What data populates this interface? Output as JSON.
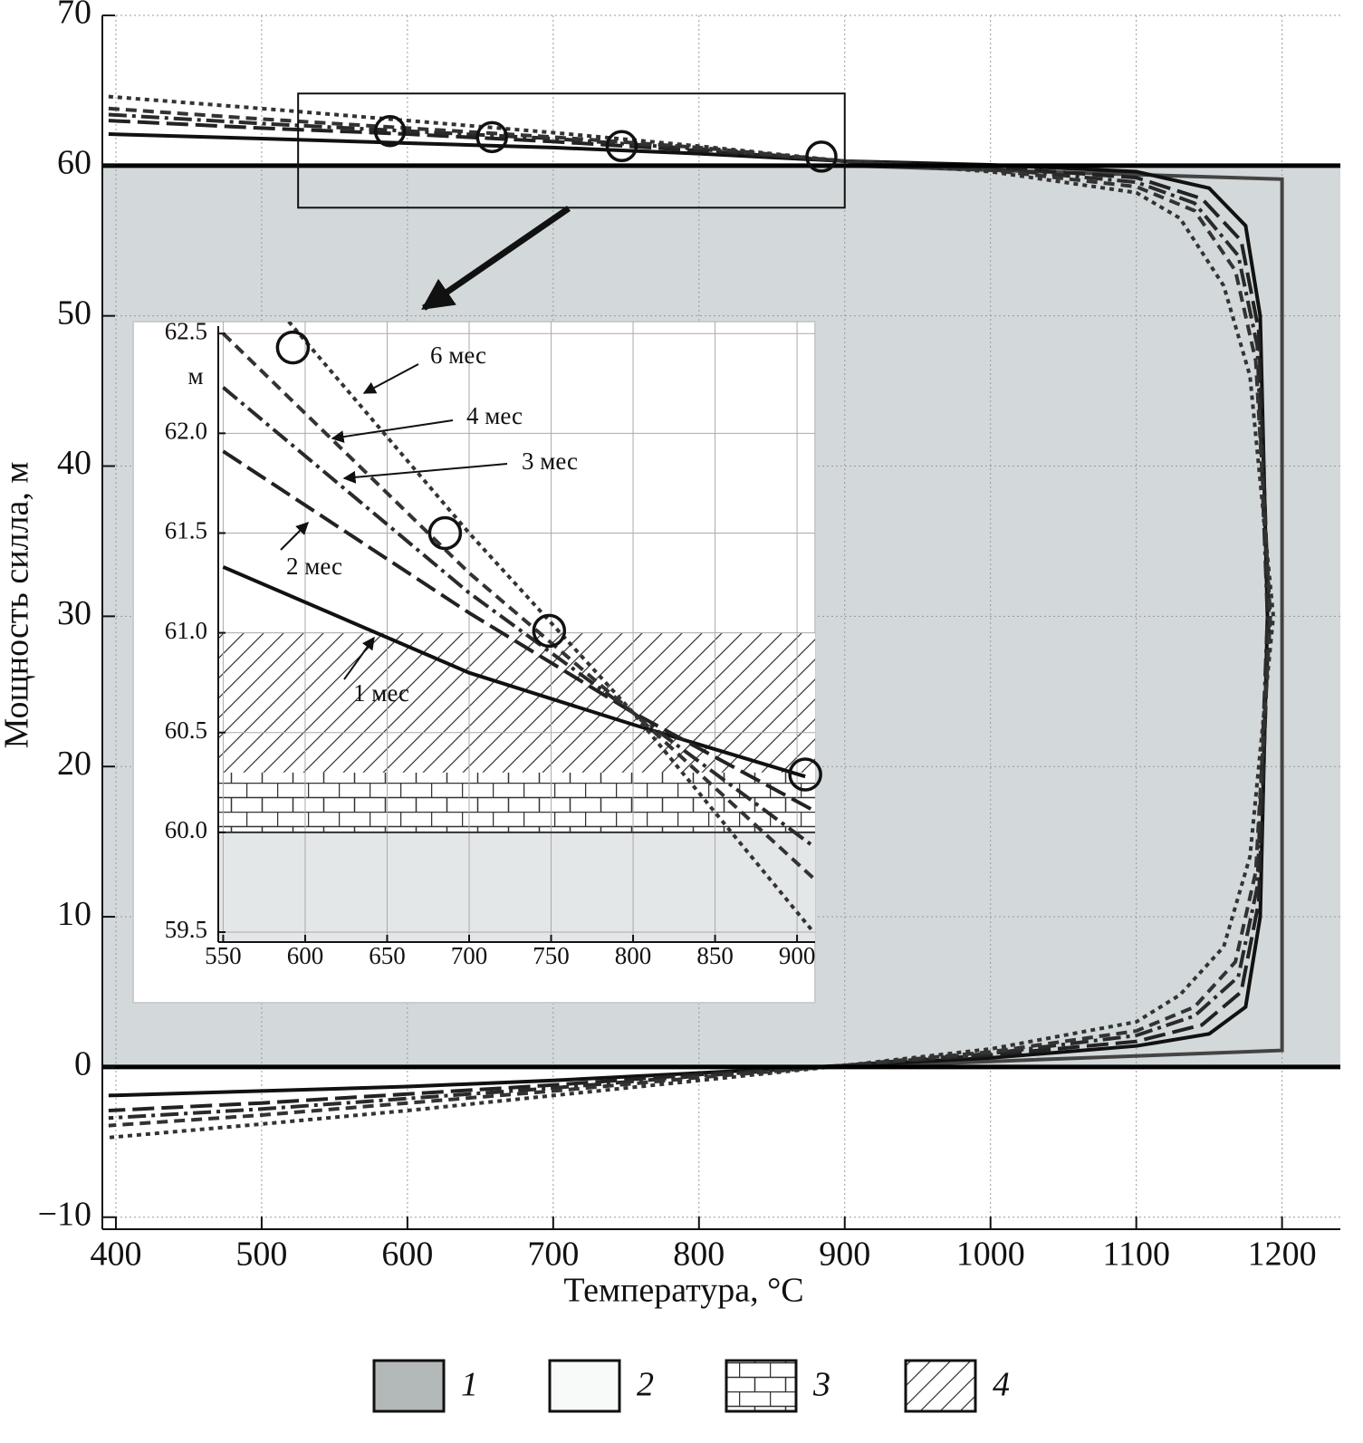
{
  "chart_data": [
    {
      "type": "line",
      "x_label": "Температура, °C",
      "y_label": "Мощность силла, м",
      "xlim": [
        390.7,
        1240
      ],
      "ylim": [
        -10.8,
        70
      ],
      "xticks": [
        400,
        500,
        600,
        700,
        800,
        900,
        1000,
        1100,
        1200
      ],
      "yticks": [
        {
          "value": -10,
          "label": "−10"
        },
        0,
        10,
        20,
        30,
        40,
        50,
        60,
        70
      ],
      "grid": true,
      "fill_band": {
        "ylim": [
          0,
          60
        ],
        "color": "#d3d9da"
      },
      "horizontal_lines": [
        60,
        0
      ],
      "zoom_box": {
        "xlim": [
          525,
          900
        ],
        "ylim": [
          57.2,
          64.8
        ]
      },
      "markers": {
        "x": [
          588,
          658,
          747,
          884
        ],
        "values": [
          62.3,
          61.9,
          61.3,
          60.6
        ]
      },
      "series": [
        {
          "color": "#444444",
          "dash": "solid",
          "x": [
            900,
            1200,
            1200,
            900
          ],
          "values": [
            60,
            59.1,
            1.1,
            0
          ]
        },
        {
          "color": "#111111",
          "dash": "solid",
          "x": [
            395,
            500,
            600,
            700,
            800,
            900,
            1000,
            1100,
            1150,
            1175,
            1185,
            1190,
            1185,
            1175,
            1150,
            1100,
            1000,
            900,
            800,
            700,
            600,
            500,
            395
          ],
          "values": [
            62.1,
            61.8,
            61.5,
            61.2,
            60.8,
            60.3,
            60.05,
            59.6,
            58.5,
            56,
            50,
            30,
            10,
            4,
            2.2,
            1.4,
            0.6,
            0.1,
            -0.4,
            -0.9,
            -1.3,
            -1.6,
            -1.9
          ]
        },
        {
          "color": "#222222",
          "dash": "long-dash",
          "x": [
            395,
            500,
            600,
            700,
            800,
            900,
            1000,
            1100,
            1145,
            1172,
            1184,
            1191,
            1184,
            1172,
            1145,
            1100,
            1000,
            900,
            800,
            700,
            600,
            500,
            395
          ],
          "values": [
            63.0,
            62.5,
            62.1,
            61.6,
            61.0,
            60.3,
            59.9,
            59.2,
            57.8,
            55,
            49,
            30,
            11,
            5,
            2.8,
            1.7,
            0.8,
            0.1,
            -0.5,
            -1.2,
            -1.8,
            -2.4,
            -2.9
          ]
        },
        {
          "color": "#2a2a2a",
          "dash": "dash-dot",
          "x": [
            395,
            500,
            600,
            700,
            800,
            900,
            1000,
            1100,
            1140,
            1170,
            1183,
            1190,
            1183,
            1170,
            1140,
            1100,
            1000,
            900,
            800,
            700,
            600,
            500,
            395
          ],
          "values": [
            63.4,
            62.8,
            62.3,
            61.8,
            61.1,
            60.3,
            59.8,
            58.9,
            57.5,
            54,
            48,
            30,
            12,
            6,
            3.4,
            2.1,
            0.9,
            0.1,
            -0.6,
            -1.4,
            -2.1,
            -2.8,
            -3.4
          ]
        },
        {
          "color": "#333333",
          "dash": "dash",
          "x": [
            395,
            500,
            600,
            700,
            800,
            900,
            1000,
            1100,
            1140,
            1168,
            1182,
            1192,
            1182,
            1168,
            1140,
            1100,
            1000,
            900,
            800,
            700,
            600,
            500,
            395
          ],
          "values": [
            63.8,
            63.1,
            62.5,
            61.9,
            61.2,
            60.3,
            59.7,
            58.6,
            57,
            53,
            47,
            30,
            13,
            7,
            4,
            2.4,
            1.0,
            0.1,
            -0.7,
            -1.6,
            -2.4,
            -3.2,
            -3.9
          ]
        },
        {
          "color": "#333333",
          "dash": "dot",
          "x": [
            395,
            500,
            600,
            700,
            800,
            900,
            1000,
            1100,
            1130,
            1160,
            1178,
            1194,
            1178,
            1160,
            1130,
            1100,
            1000,
            900,
            800,
            700,
            600,
            500,
            395
          ],
          "values": [
            64.6,
            63.8,
            63.0,
            62.2,
            61.3,
            60.3,
            59.6,
            58.2,
            56.5,
            52,
            46,
            30,
            14,
            8,
            4.8,
            3,
            1.2,
            0.1,
            -0.9,
            -1.9,
            -2.9,
            -3.8,
            -4.7
          ]
        }
      ],
      "legend": [
        {
          "label": "1",
          "pattern": "gray"
        },
        {
          "label": "2",
          "pattern": "white"
        },
        {
          "label": "3",
          "pattern": "brick"
        },
        {
          "label": "4",
          "pattern": "hatch"
        }
      ]
    },
    {
      "type": "line",
      "y_label": "м",
      "xlim": [
        547,
        911
      ],
      "ylim": [
        59.45,
        62.56
      ],
      "xticks": [
        550,
        600,
        650,
        700,
        750,
        800,
        850,
        900
      ],
      "yticks": [
        59.5,
        {
          "value": 60,
          "label": "60.0"
        },
        60.5,
        {
          "value": 61,
          "label": "61.0"
        },
        61.5,
        {
          "value": 62,
          "label": "62.0"
        },
        62.5
      ],
      "grid": true,
      "zones": [
        {
          "ylim": [
            59.45,
            60.0
          ],
          "pattern": "gray"
        },
        {
          "ylim": [
            60.0,
            60.3
          ],
          "pattern": "brick"
        },
        {
          "ylim": [
            60.3,
            61.0
          ],
          "pattern": "hatch"
        }
      ],
      "markers": {
        "x": [
          592.5,
          685.3,
          748.8,
          905
        ],
        "values": [
          62.43,
          61.5,
          61.01,
          60.29
        ]
      },
      "series": [
        {
          "name": "1 мес",
          "color": "#111111",
          "dash": "solid",
          "x": [
            550,
            700,
            800,
            905
          ],
          "values": [
            61.33,
            60.8,
            60.54,
            60.28
          ]
        },
        {
          "name": "2 мес",
          "color": "#222222",
          "dash": "long-dash",
          "x": [
            550,
            700,
            800,
            910
          ],
          "values": [
            61.91,
            61.1,
            60.6,
            60.11
          ]
        },
        {
          "name": "3 мес",
          "color": "#2a2a2a",
          "dash": "dash-dot",
          "x": [
            550,
            700,
            800,
            910
          ],
          "values": [
            62.23,
            61.2,
            60.6,
            59.93
          ]
        },
        {
          "name": "4 мес",
          "color": "#333333",
          "dash": "dash",
          "x": [
            550,
            700,
            800,
            910
          ],
          "values": [
            62.5,
            61.3,
            60.6,
            59.77
          ]
        },
        {
          "name": "6 мес",
          "color": "#333333",
          "dash": "dot",
          "x": [
            590,
            700,
            800,
            910
          ],
          "values": [
            62.56,
            61.5,
            60.6,
            59.5
          ]
        }
      ]
    }
  ]
}
